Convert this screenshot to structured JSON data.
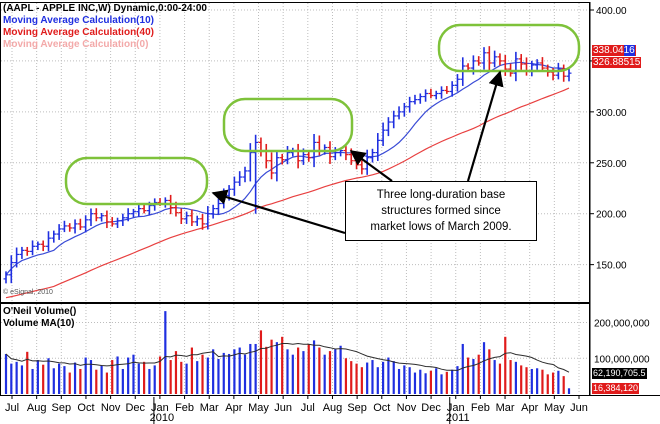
{
  "labels": {
    "symbol": "(AAPL - APPLE INC,W) Dynamic,0:00-24:00",
    "ma10": "Moving Average Calculation(10)",
    "ma40": "Moving Average Calculation(40)",
    "ma_faded": "Moving Average Calculation(0)",
    "watermark": "© eSignal, 2010",
    "volume": "O'Neil Volume()",
    "volume_ma": "Volume MA(10)"
  },
  "callout": {
    "line1": "Three long-duration base",
    "line2": "structures formed since",
    "line3": "market lows of March 2009."
  },
  "price_tags": {
    "last": "338.04",
    "last_suffix": "16",
    "ma40": "326.88515"
  },
  "volume_tags": {
    "ma": "62,190,705.5",
    "last": "16,384,120"
  },
  "colors": {
    "up": "#1f2fe0",
    "down": "#e01b1b",
    "ma10": "#3a4bd6",
    "ma40": "#e84040",
    "ma_faded": "#f3a9a9",
    "base_box": "#7ec23a",
    "volume_ma": "#2c2c2c"
  },
  "chart_data": [
    {
      "type": "bar",
      "subtype": "ohlc",
      "price_axis": {
        "ylim": [
          130,
          400
        ],
        "ticks": [
          "150.00",
          "200.00",
          "250.00",
          "300.00",
          "350.00",
          "400.00"
        ]
      },
      "x_labels": [
        "Jul",
        "Aug",
        "Sep",
        "Oct",
        "Nov",
        "Dec",
        "Jan",
        "Feb",
        "Mar",
        "Apr",
        "May",
        "Jun",
        "Jul",
        "Aug",
        "Sep",
        "Oct",
        "Nov",
        "Dec",
        "Jan",
        "Feb",
        "Mar",
        "Apr",
        "May",
        "Jun"
      ],
      "year_labels": [
        "2010",
        "2011"
      ],
      "close": [
        140,
        152,
        160,
        164,
        163,
        168,
        170,
        168,
        176,
        180,
        185,
        188,
        186,
        190,
        187,
        194,
        200,
        196,
        198,
        192,
        190,
        193,
        196,
        200,
        202,
        205,
        203,
        208,
        211,
        210,
        213,
        206,
        201,
        195,
        198,
        192,
        195,
        190,
        200,
        205,
        210,
        218,
        224,
        231,
        236,
        242,
        260,
        270,
        262,
        252,
        240,
        255,
        253,
        260,
        262,
        252,
        258,
        255,
        270,
        262,
        265,
        256,
        260,
        262,
        258,
        252,
        248,
        244,
        255,
        260,
        272,
        282,
        290,
        296,
        300,
        305,
        310,
        312,
        315,
        318,
        316,
        318,
        321,
        320,
        326,
        332,
        345,
        343,
        350,
        348,
        358,
        348,
        354,
        350,
        342,
        338,
        352,
        347,
        340,
        346,
        348,
        343,
        339,
        336,
        342,
        335,
        338
      ]
    },
    {
      "type": "bar",
      "subtype": "volume",
      "volume_axis": {
        "ylim": [
          0,
          235000000
        ],
        "ticks": [
          "100,000,000",
          "200,000,000"
        ]
      },
      "volume": [
        112,
        85,
        90,
        80,
        118,
        70,
        95,
        82,
        100,
        72,
        85,
        78,
        60,
        88,
        70,
        102,
        95,
        68,
        80,
        60,
        95,
        105,
        70,
        102,
        110,
        85,
        90,
        70,
        80,
        105,
        232,
        95,
        120,
        90,
        85,
        130,
        92,
        110,
        102,
        125,
        98,
        115,
        112,
        125,
        130,
        110,
        140,
        140,
        178,
        132,
        152,
        145,
        160,
        125,
        110,
        130,
        120,
        140,
        150,
        130,
        110,
        120,
        125,
        135,
        100,
        92,
        85,
        75,
        88,
        95,
        75,
        90,
        102,
        92,
        70,
        80,
        75,
        60,
        68,
        58,
        65,
        72,
        55,
        62,
        68,
        78,
        140,
        102,
        98,
        110,
        145,
        125,
        95,
        85,
        160,
        95,
        90,
        80,
        75,
        70,
        72,
        68,
        55,
        60,
        65,
        50,
        16
      ],
      "volume_units": "millions"
    }
  ]
}
